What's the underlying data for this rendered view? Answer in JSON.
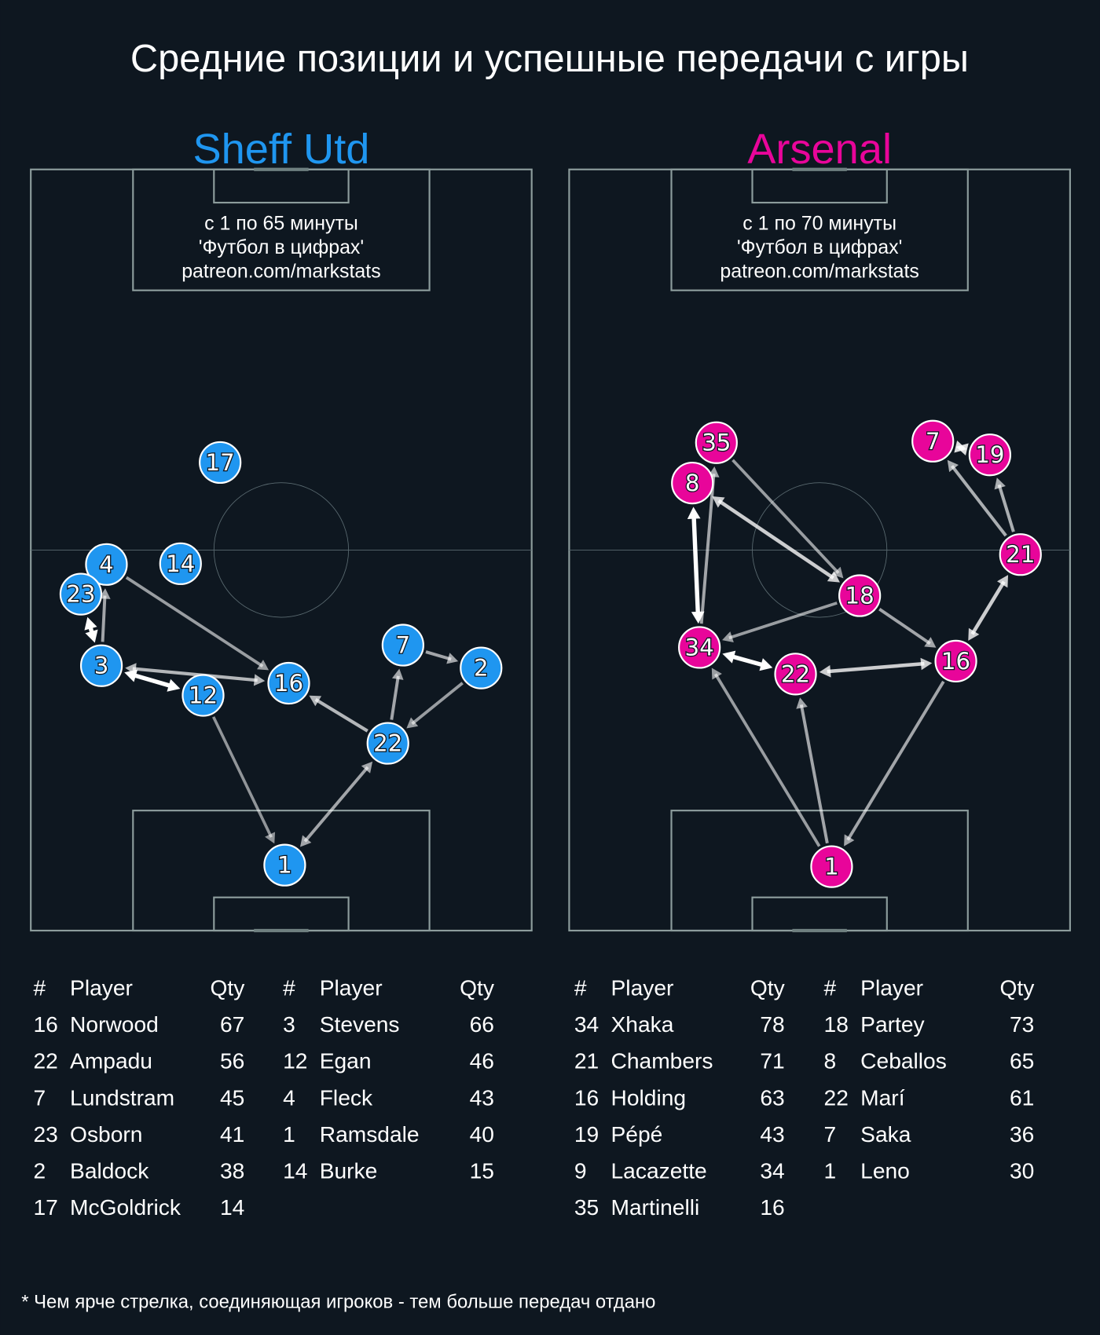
{
  "title": "Средние позиции и успешные передачи с игры",
  "footnote": "* Чем ярче стрелка, соединяющая игроков - тем больше передач отдано",
  "colors": {
    "background": "#0e1720",
    "pitch_lines": "#8c9c9c",
    "home": "#1f96f0",
    "away": "#e8059a",
    "arrow": "#ffffff"
  },
  "chart_data": {
    "type": "pass-network",
    "position_units": "percent of pitch width (x, left to right) and length (y, top to bottom)",
    "teams": [
      {
        "name": "Sheff Utd",
        "color": "#1f96f0",
        "caption": [
          "с 1 по 65 минуты",
          "'Футбол в цифрах'",
          "patreon.com/markstats"
        ],
        "players": [
          {
            "num": "17",
            "x": 37.8,
            "y": 38.5
          },
          {
            "num": "4",
            "x": 15.1,
            "y": 51.9
          },
          {
            "num": "14",
            "x": 29.9,
            "y": 51.8
          },
          {
            "num": "23",
            "x": 10.0,
            "y": 55.8
          },
          {
            "num": "3",
            "x": 14.1,
            "y": 65.2
          },
          {
            "num": "12",
            "x": 34.4,
            "y": 69.1
          },
          {
            "num": "16",
            "x": 51.5,
            "y": 67.5
          },
          {
            "num": "7",
            "x": 74.3,
            "y": 62.5
          },
          {
            "num": "2",
            "x": 89.9,
            "y": 65.5
          },
          {
            "num": "22",
            "x": 71.3,
            "y": 75.4
          },
          {
            "num": "1",
            "x": 50.7,
            "y": 91.4
          }
        ],
        "passes": [
          {
            "from": "3",
            "to": "23",
            "both": true,
            "intensity": 1.0
          },
          {
            "from": "3",
            "to": "4",
            "both": false,
            "intensity": 0.45
          },
          {
            "from": "4",
            "to": "16",
            "both": false,
            "intensity": 0.4
          },
          {
            "from": "3",
            "to": "16",
            "both": true,
            "intensity": 0.55
          },
          {
            "from": "12",
            "to": "3",
            "both": true,
            "intensity": 1.0
          },
          {
            "from": "12",
            "to": "1",
            "both": false,
            "intensity": 0.35
          },
          {
            "from": "1",
            "to": "22",
            "both": true,
            "intensity": 0.45
          },
          {
            "from": "22",
            "to": "16",
            "both": false,
            "intensity": 0.55
          },
          {
            "from": "22",
            "to": "7",
            "both": false,
            "intensity": 0.45
          },
          {
            "from": "7",
            "to": "2",
            "both": false,
            "intensity": 0.45
          },
          {
            "from": "2",
            "to": "22",
            "both": false,
            "intensity": 0.4
          }
        ],
        "table": {
          "headers": [
            "#",
            "Player",
            "Qty"
          ],
          "columns": [
            [
              [
                "16",
                "Norwood",
                "67"
              ],
              [
                "22",
                "Ampadu",
                "56"
              ],
              [
                "7",
                "Lundstram",
                "45"
              ],
              [
                "23",
                "Osborn",
                "41"
              ],
              [
                "2",
                "Baldock",
                "38"
              ],
              [
                "17",
                "McGoldrick",
                "14"
              ]
            ],
            [
              [
                "3",
                "Stevens",
                "66"
              ],
              [
                "12",
                "Egan",
                "46"
              ],
              [
                "4",
                "Fleck",
                "43"
              ],
              [
                "1",
                "Ramsdale",
                "40"
              ],
              [
                "14",
                "Burke",
                "15"
              ]
            ]
          ]
        }
      },
      {
        "name": "Arsenal",
        "color": "#e8059a",
        "caption": [
          "с 1 по 70 минуты",
          "'Футбол в цифрах'",
          "patreon.com/markstats"
        ],
        "players": [
          {
            "num": "35",
            "x": 29.4,
            "y": 35.9
          },
          {
            "num": "8",
            "x": 24.6,
            "y": 41.2
          },
          {
            "num": "7",
            "x": 72.6,
            "y": 35.7
          },
          {
            "num": "19",
            "x": 84.0,
            "y": 37.5
          },
          {
            "num": "21",
            "x": 90.1,
            "y": 50.6
          },
          {
            "num": "18",
            "x": 58.0,
            "y": 56.0
          },
          {
            "num": "34",
            "x": 26.0,
            "y": 62.8
          },
          {
            "num": "22",
            "x": 45.2,
            "y": 66.3
          },
          {
            "num": "16",
            "x": 77.2,
            "y": 64.6
          },
          {
            "num": "1",
            "x": 52.4,
            "y": 91.6
          }
        ],
        "passes": [
          {
            "from": "35",
            "to": "18",
            "both": false,
            "intensity": 0.4
          },
          {
            "from": "18",
            "to": "8",
            "both": true,
            "intensity": 0.7
          },
          {
            "from": "34",
            "to": "8",
            "both": true,
            "intensity": 1.0
          },
          {
            "from": "34",
            "to": "35",
            "both": false,
            "intensity": 0.45
          },
          {
            "from": "18",
            "to": "34",
            "both": false,
            "intensity": 0.4
          },
          {
            "from": "18",
            "to": "16",
            "both": false,
            "intensity": 0.45
          },
          {
            "from": "22",
            "to": "34",
            "both": true,
            "intensity": 1.0
          },
          {
            "from": "16",
            "to": "22",
            "both": true,
            "intensity": 0.7
          },
          {
            "from": "16",
            "to": "21",
            "both": true,
            "intensity": 0.7
          },
          {
            "from": "21",
            "to": "7",
            "both": false,
            "intensity": 0.5
          },
          {
            "from": "21",
            "to": "19",
            "both": false,
            "intensity": 0.5
          },
          {
            "from": "7",
            "to": "19",
            "both": true,
            "intensity": 0.8
          },
          {
            "from": "1",
            "to": "34",
            "both": false,
            "intensity": 0.4
          },
          {
            "from": "1",
            "to": "22",
            "both": false,
            "intensity": 0.45
          },
          {
            "from": "16",
            "to": "1",
            "both": false,
            "intensity": 0.45
          }
        ],
        "table": {
          "headers": [
            "#",
            "Player",
            "Qty"
          ],
          "columns": [
            [
              [
                "34",
                "Xhaka",
                "78"
              ],
              [
                "21",
                "Chambers",
                "71"
              ],
              [
                "16",
                "Holding",
                "63"
              ],
              [
                "19",
                "Pépé",
                "43"
              ],
              [
                "9",
                "Lacazette",
                "34"
              ],
              [
                "35",
                "Martinelli",
                "16"
              ]
            ],
            [
              [
                "18",
                "Partey",
                "73"
              ],
              [
                "8",
                "Ceballos",
                "65"
              ],
              [
                "22",
                "Marí",
                "61"
              ],
              [
                "7",
                "Saka",
                "36"
              ],
              [
                "1",
                "Leno",
                "30"
              ]
            ]
          ]
        }
      }
    ]
  }
}
